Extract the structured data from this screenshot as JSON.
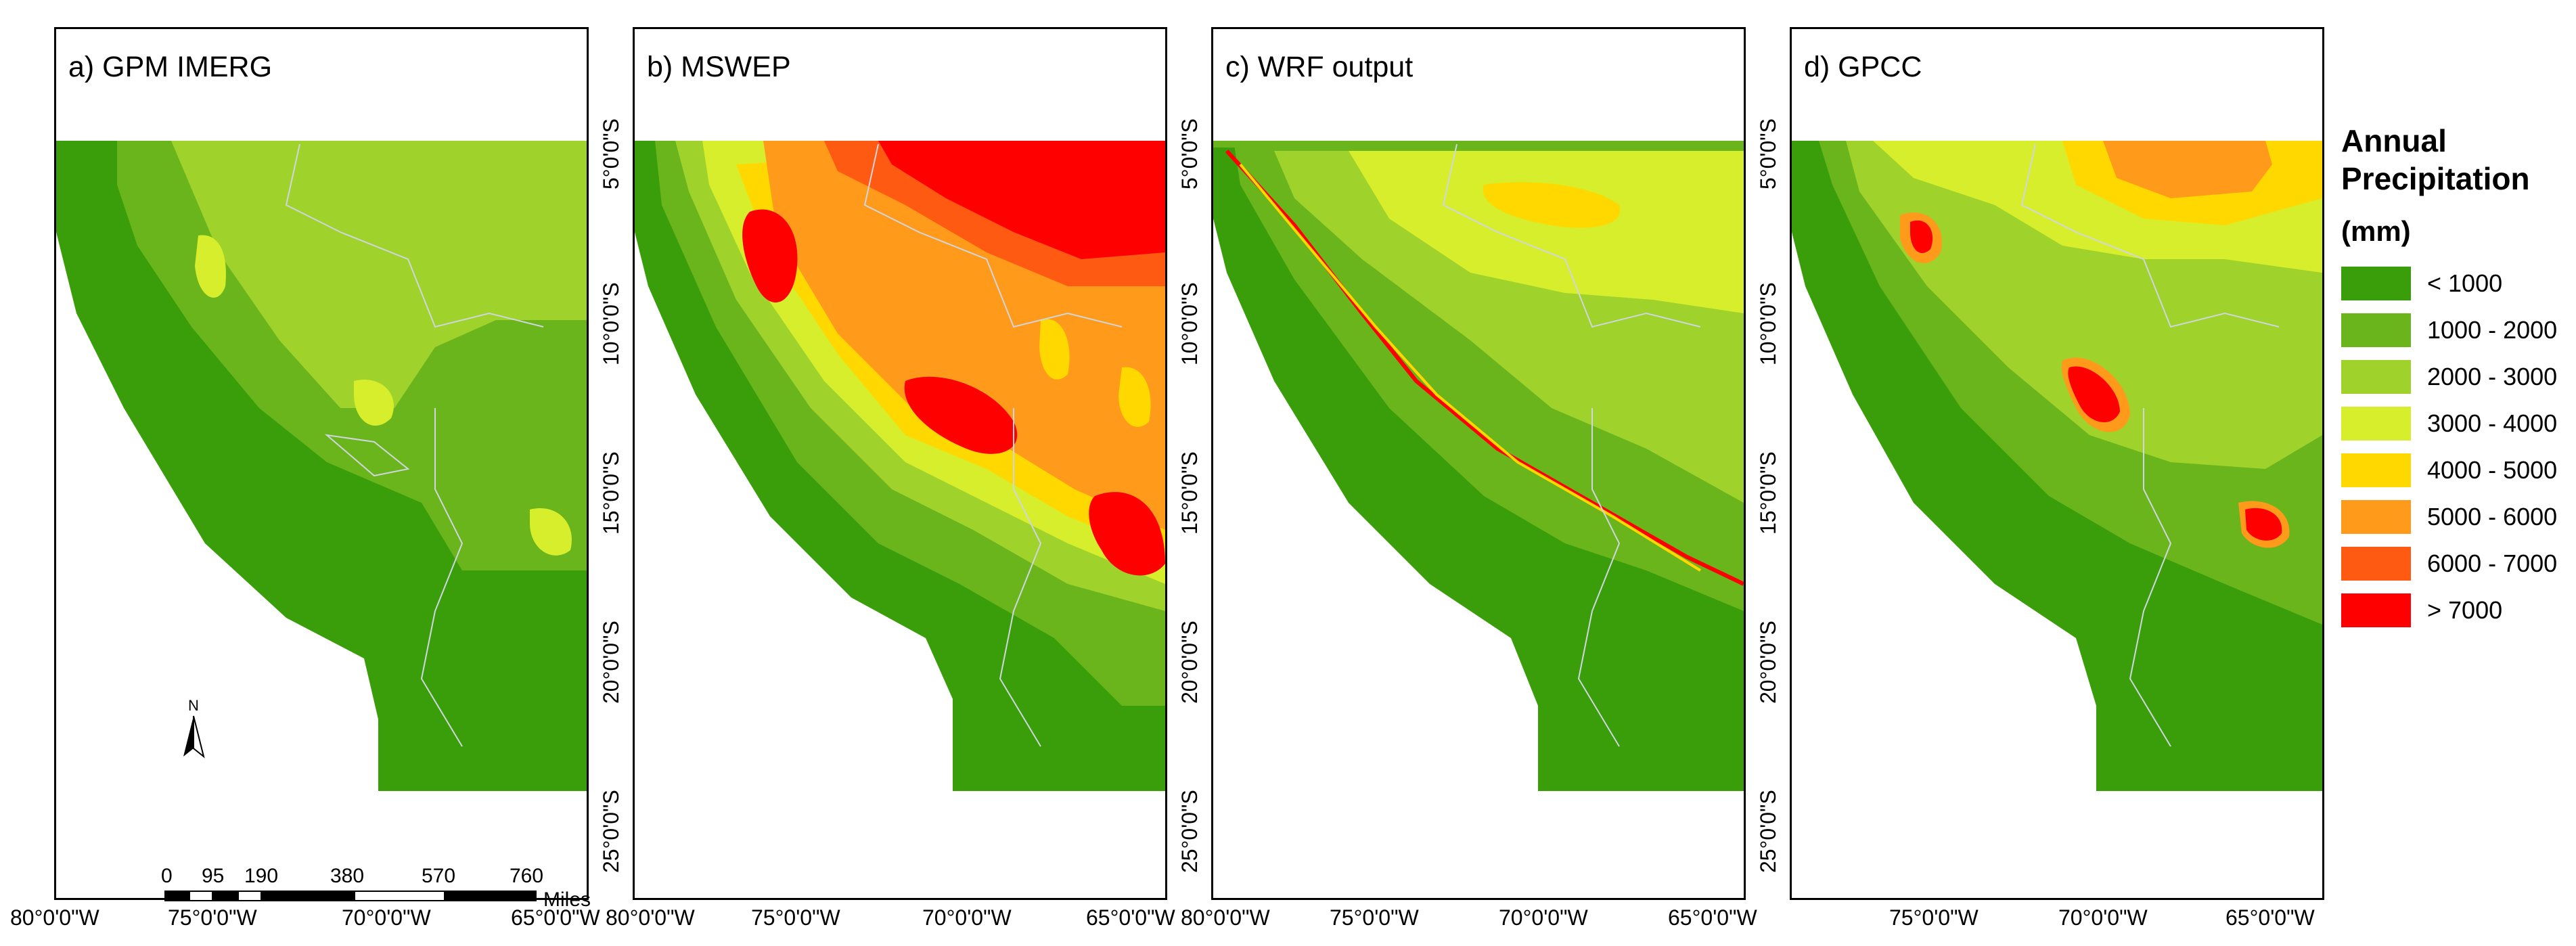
{
  "panels": [
    {
      "title": "a) GPM IMERG"
    },
    {
      "title": "b) MSWEP"
    },
    {
      "title": "c) WRF output"
    },
    {
      "title": "d) GPCC"
    }
  ],
  "lat_ticks": [
    "5°0'0\"S",
    "10°0'0\"S",
    "15°0'0\"S",
    "20°0'0\"S",
    "25°0'0\"S"
  ],
  "lon_ticks_a": [
    "80°0'0\"W",
    "75°0'0\"W",
    "70°0'0\"W",
    "65°0'0\"W"
  ],
  "lon_ticks_b": [
    "80°0'0\"W",
    "75°0'0\"W",
    "70°0'0\"W",
    "65°0'0\"W"
  ],
  "lon_ticks_c": [
    "80°0'0\"W",
    "75°0'0\"W",
    "70°0'0\"W",
    "65°0'0\"W"
  ],
  "lon_ticks_d": [
    "75°0'0\"W",
    "70°0'0\"W",
    "65°0'0\"W"
  ],
  "legend": {
    "title": "Annual Precipitation",
    "unit": "(mm)",
    "items": [
      {
        "label": "< 1000",
        "color": "#3a9e0a"
      },
      {
        "label": "1000 - 2000",
        "color": "#6ab51c"
      },
      {
        "label": "2000 - 3000",
        "color": "#9fd22b"
      },
      {
        "label": "3000 - 4000",
        "color": "#d6ee2b"
      },
      {
        "label": "4000 - 5000",
        "color": "#ffd800"
      },
      {
        "label": "5000 - 6000",
        "color": "#ff9a1a"
      },
      {
        "label": "6000 - 7000",
        "color": "#ff5a12"
      },
      {
        "label": "> 7000",
        "color": "#ff0000"
      }
    ]
  },
  "scale_bar": {
    "labels": [
      "0",
      "95",
      "190",
      "380",
      "570",
      "760"
    ],
    "unit": "Miles"
  },
  "north_arrow": {
    "label": "N"
  }
}
